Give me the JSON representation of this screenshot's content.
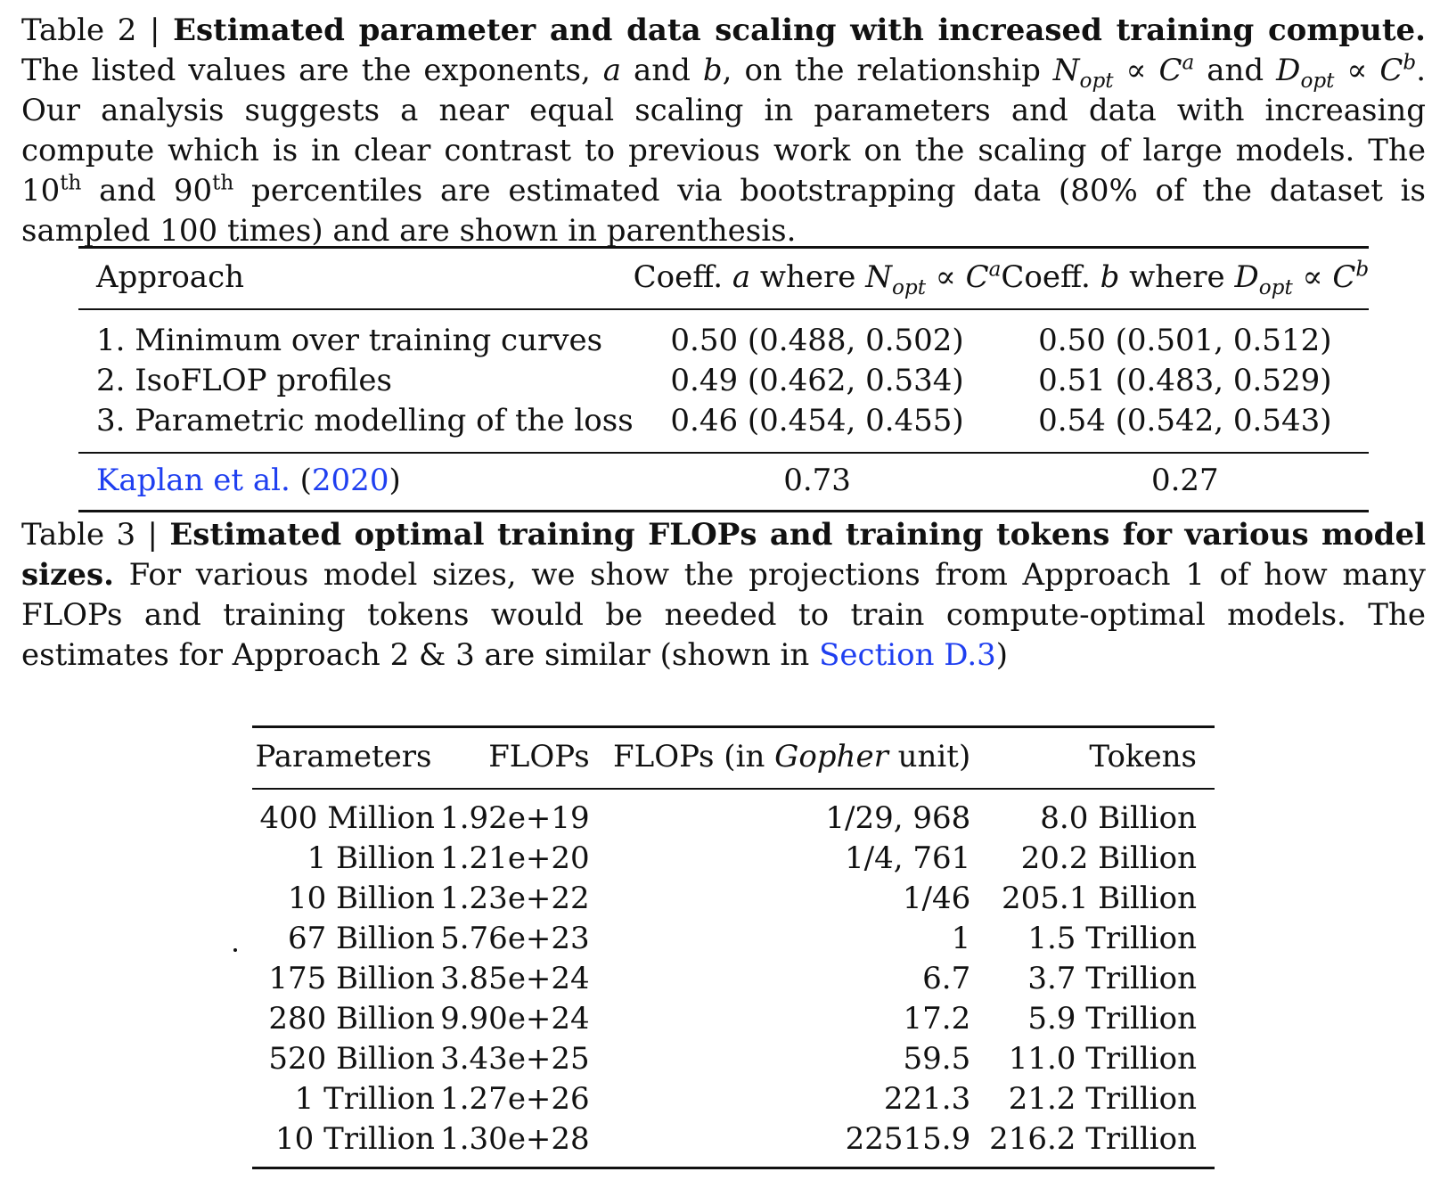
{
  "table2": {
    "caption": {
      "label": "Table 2 | ",
      "title": "Estimated parameter and data scaling with increased training compute.",
      "text1": " The listed values are the exponents, ",
      "var_a": "a",
      "text2": " and ",
      "var_b": "b",
      "text3": ", on the relationship ",
      "rel1_main": "N",
      "rel1_sub": "opt",
      "rel_sym": " ∝ ",
      "rel_c": "C",
      "rel1_sup": "a",
      "text4": " and ",
      "rel2_main": "D",
      "rel2_sub": "opt",
      "rel2_sup": "b",
      "text5": ". Our analysis suggests a near equal scaling in parameters and data with increasing compute which is in clear contrast to previous work on the scaling of large models. The 10",
      "sup_th1": "th",
      "text6": " and 90",
      "sup_th2": "th",
      "text7": " percentiles are estimated via bootstrapping data (80% of the dataset is sampled 100 times) and are shown in parenthesis."
    },
    "header": {
      "approach": "Approach",
      "coeff_a_prefix": "Coeff. ",
      "coeff_a_var": "a",
      "coeff_a_where": " where ",
      "coeff_a_N": "N",
      "coeff_a_sub": "opt",
      "coeff_a_rel": " ∝ ",
      "coeff_a_C": "C",
      "coeff_a_sup": "a",
      "coeff_b_prefix": "Coeff. ",
      "coeff_b_var": "b",
      "coeff_b_where": " where ",
      "coeff_b_D": "D",
      "coeff_b_sub": "opt",
      "coeff_b_rel": " ∝ ",
      "coeff_b_C": "C",
      "coeff_b_sup": "b"
    },
    "rows": [
      {
        "approach": "1. Minimum over training curves",
        "a": "0.50 (0.488, 0.502)",
        "b": "0.50 (0.501, 0.512)"
      },
      {
        "approach": "2. IsoFLOP profiles",
        "a": "0.49 (0.462, 0.534)",
        "b": "0.51 (0.483, 0.529)"
      },
      {
        "approach": "3. Parametric modelling of the loss",
        "a": "0.46 (0.454, 0.455)",
        "b": "0.54 (0.542, 0.543)"
      }
    ],
    "footer": {
      "ref_author": "Kaplan et al.",
      "ref_open": " (",
      "ref_year": "2020",
      "ref_close": ")",
      "a": "0.73",
      "b": "0.27"
    }
  },
  "table3": {
    "caption": {
      "label": "Table 3 | ",
      "title": "Estimated optimal training FLOPs and training tokens for various model sizes.",
      "text1": " For various model sizes, we show the projections from Approach 1 of how many FLOPs and training tokens would be needed to train compute-optimal models. The estimates for Approach 2 & 3 are similar (shown in ",
      "link": "Section D.3",
      "text2": ")"
    },
    "header": {
      "parameters": "Parameters",
      "flops": "FLOPs",
      "gopher_prefix": "FLOPs (in ",
      "gopher_italic": "Gopher",
      "gopher_suffix": " unit)",
      "tokens": "Tokens"
    },
    "rows": [
      {
        "params": "400 Million",
        "flops": "1.92e+19",
        "gopher": "1/29, 968",
        "tokens": "8.0 Billion"
      },
      {
        "params": "1 Billion",
        "flops": "1.21e+20",
        "gopher": "1/4, 761",
        "tokens": "20.2 Billion"
      },
      {
        "params": "10 Billion",
        "flops": "1.23e+22",
        "gopher": "1/46",
        "tokens": "205.1 Billion"
      },
      {
        "params": "67 Billion",
        "flops": "5.76e+23",
        "gopher": "1",
        "tokens": "1.5 Trillion"
      },
      {
        "params": "175 Billion",
        "flops": "3.85e+24",
        "gopher": "6.7",
        "tokens": "3.7 Trillion"
      },
      {
        "params": "280 Billion",
        "flops": "9.90e+24",
        "gopher": "17.2",
        "tokens": "5.9 Trillion"
      },
      {
        "params": "520 Billion",
        "flops": "3.43e+25",
        "gopher": "59.5",
        "tokens": "11.0 Trillion"
      },
      {
        "params": "1 Trillion",
        "flops": "1.27e+26",
        "gopher": "221.3",
        "tokens": "21.2 Trillion"
      },
      {
        "params": "10 Trillion",
        "flops": "1.30e+28",
        "gopher": "22515.9",
        "tokens": "216.2 Trillion"
      }
    ]
  }
}
